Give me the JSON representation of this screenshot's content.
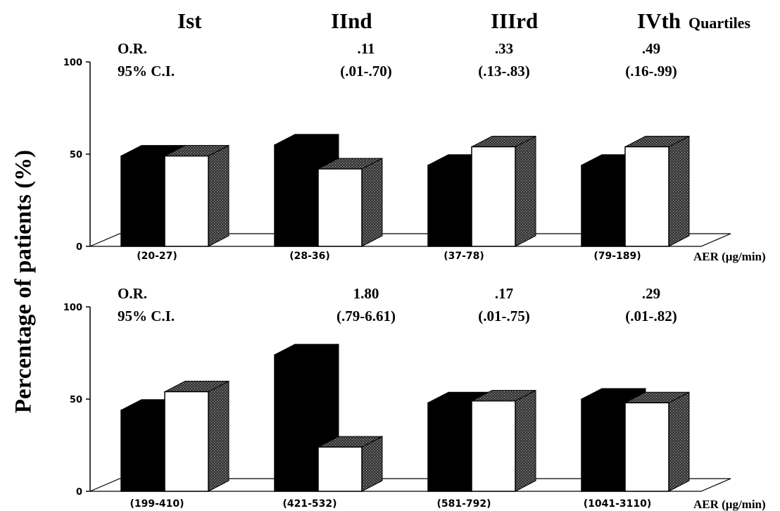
{
  "ylabel": "Percentage of patients (%)",
  "quartile_headers": [
    {
      "label": "Ist"
    },
    {
      "label": "IInd"
    },
    {
      "label": "IIIrd"
    },
    {
      "label": "IVth",
      "suffix": "Quartiles"
    }
  ],
  "chart_data": [
    {
      "type": "bar",
      "stats_row_labels": [
        "O.R.",
        "95% C.I."
      ],
      "or_values": [
        "",
        ".11",
        ".33",
        ".49"
      ],
      "ci_values": [
        "",
        "(.01-.70)",
        "(.13-.83)",
        "(.16-.99)"
      ],
      "categories": [
        "(20-27)",
        "(28-36)",
        "(37-78)",
        "(79-189)"
      ],
      "xlabel_unit": "AER (μg/min)",
      "ylim": [
        0,
        100
      ],
      "yticks": [
        0,
        50,
        100
      ],
      "series": [
        {
          "color": "#000000",
          "values": [
            49,
            55,
            44,
            44
          ]
        },
        {
          "color": "#ffffff",
          "values": [
            49,
            42,
            54,
            54
          ]
        }
      ]
    },
    {
      "type": "bar",
      "stats_row_labels": [
        "O.R.",
        "95% C.I."
      ],
      "or_values": [
        "",
        "1.80",
        ".17",
        ".29"
      ],
      "ci_values": [
        "",
        "(.79-6.61)",
        "(.01-.75)",
        "(.01-.82)"
      ],
      "categories": [
        "(199-410)",
        "(421-532)",
        "(581-792)",
        "(1041-3110)"
      ],
      "xlabel_unit": "AER (μg/min)",
      "ylim": [
        0,
        100
      ],
      "yticks": [
        0,
        50,
        100
      ],
      "series": [
        {
          "color": "#000000",
          "values": [
            44,
            74,
            48,
            50
          ]
        },
        {
          "color": "#ffffff",
          "values": [
            54,
            24,
            49,
            48
          ]
        }
      ]
    }
  ]
}
